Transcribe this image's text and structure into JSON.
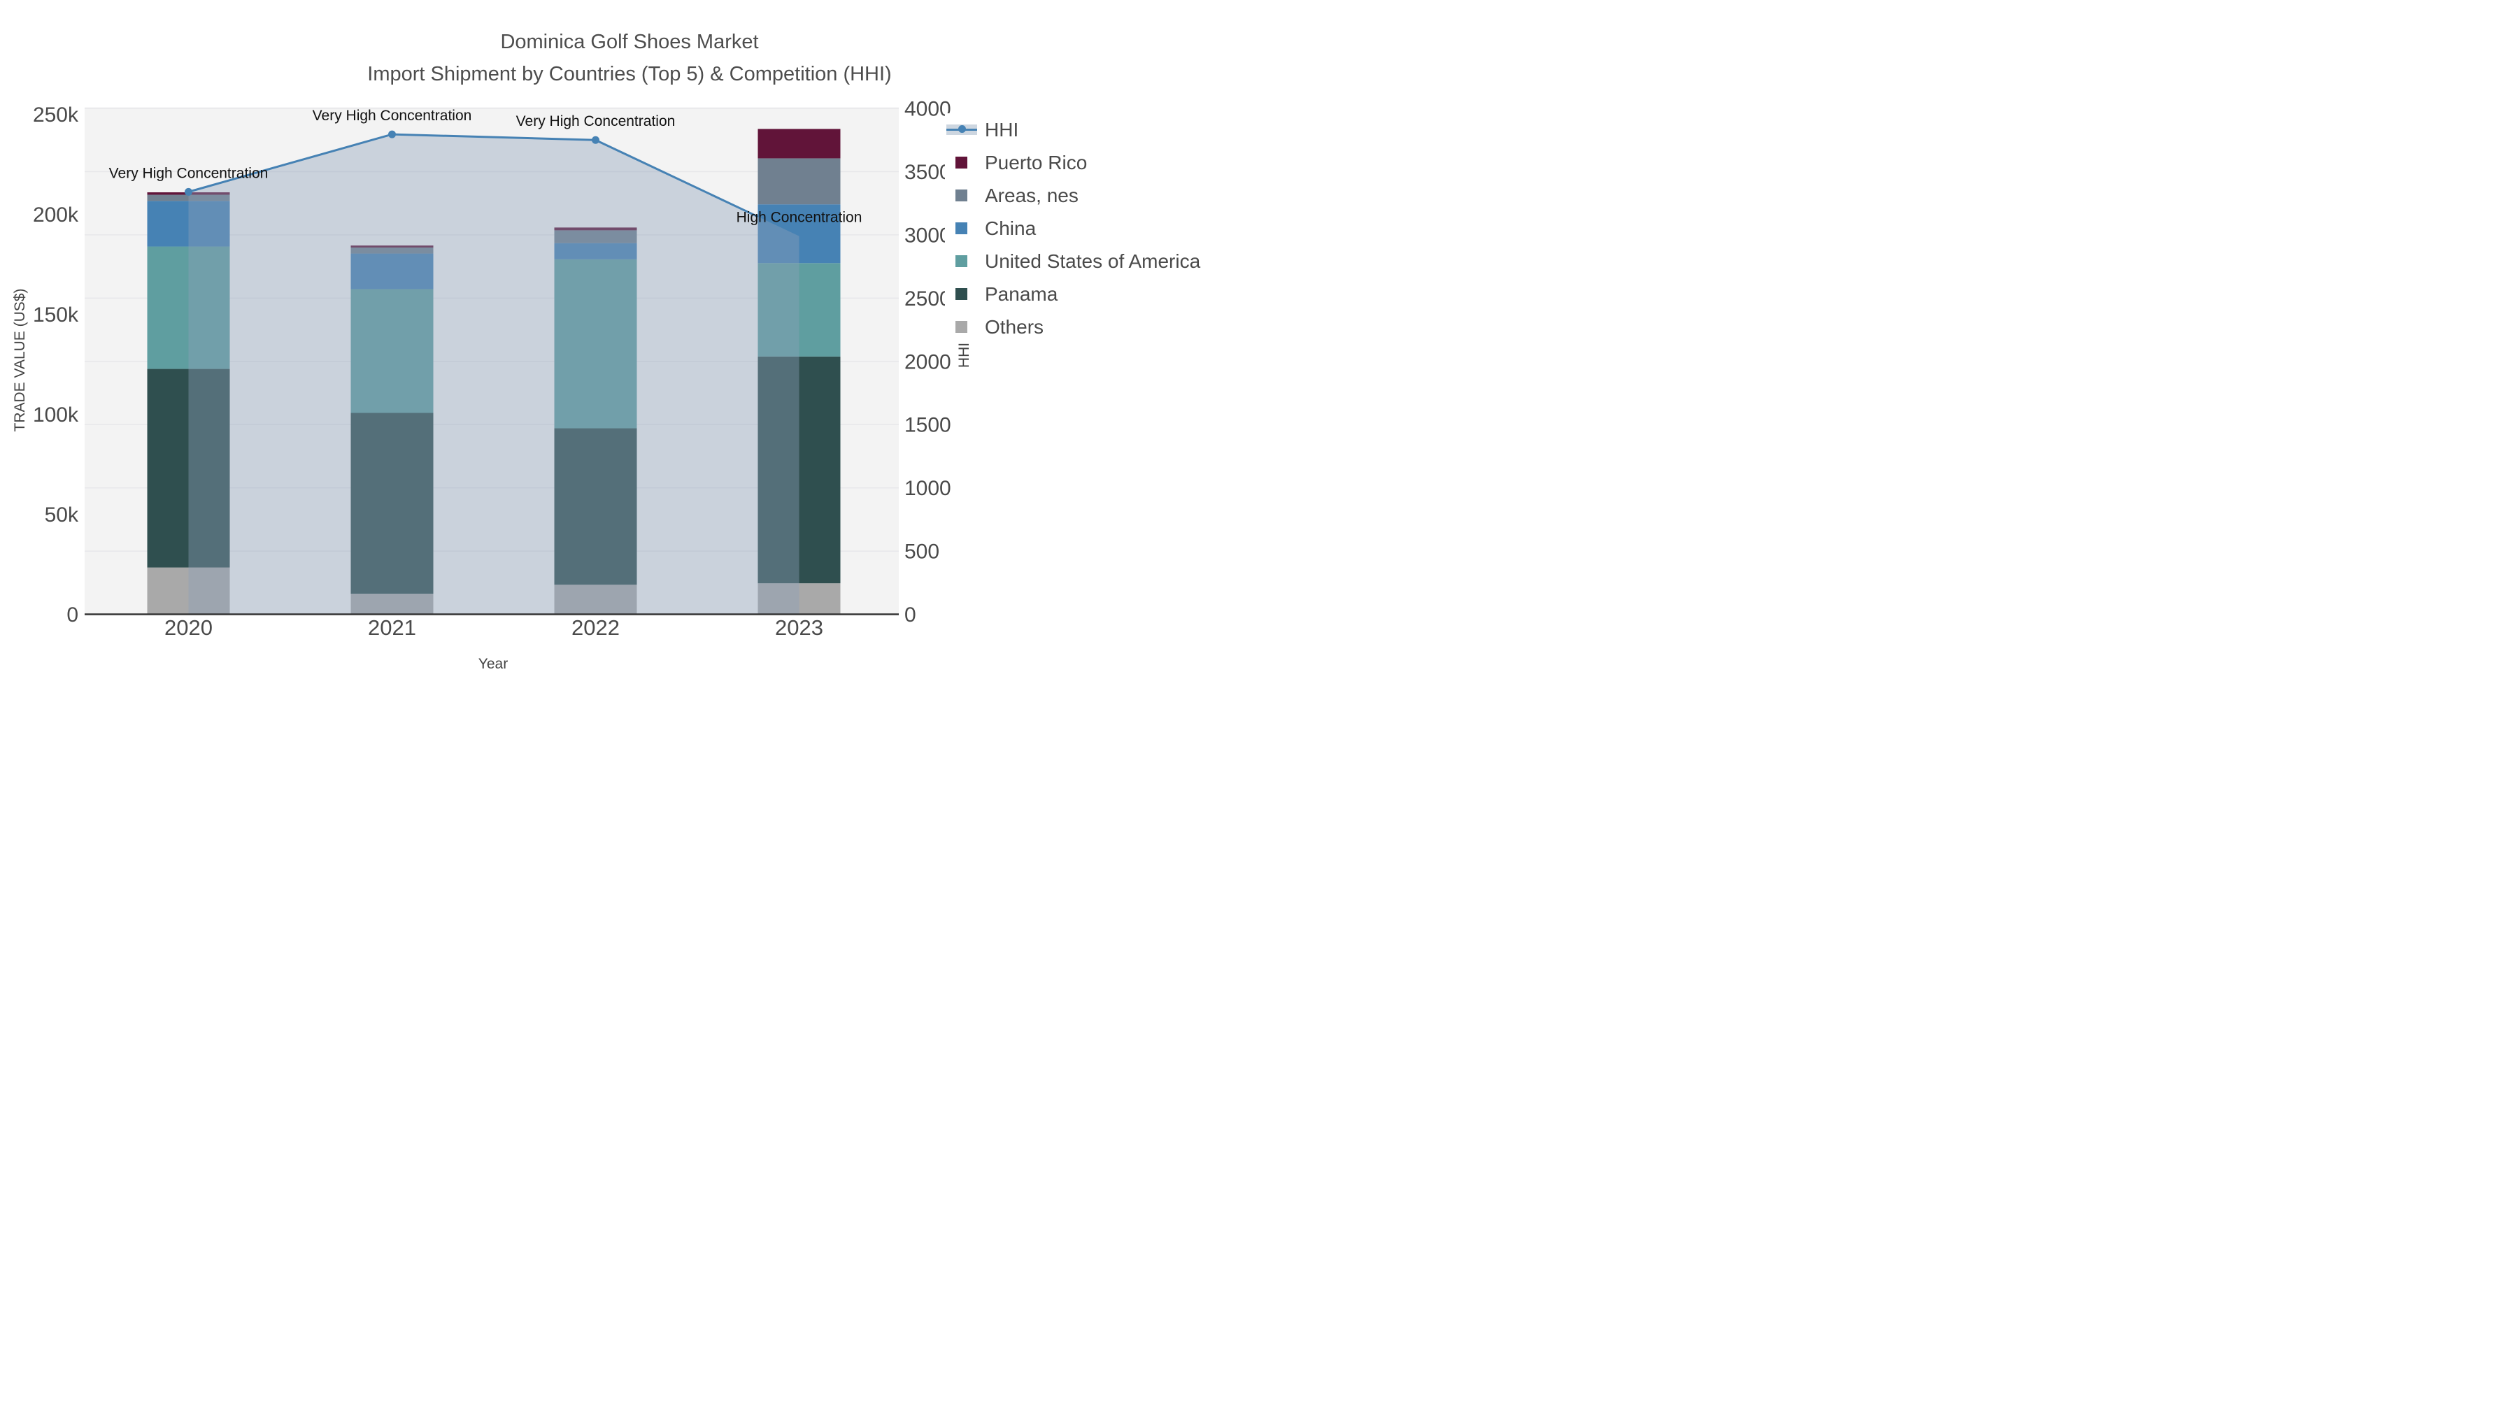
{
  "title": {
    "line1": "Dominica Golf Shoes Market",
    "line2": "Import Shipment by Countries (Top 5) & Competition (HHI)"
  },
  "axes": {
    "x": {
      "title": "Year",
      "tick_labels": [
        "2020",
        "2021",
        "2022",
        "2023"
      ]
    },
    "y_left": {
      "title": "TRADE VALUE (US$)",
      "tick_labels": [
        "0",
        "50k",
        "100k",
        "150k",
        "200k",
        "250k"
      ],
      "tick_values": [
        0,
        50000,
        100000,
        150000,
        200000,
        250000
      ]
    },
    "y_right": {
      "title": "HHI",
      "tick_labels": [
        "0",
        "500",
        "1000",
        "1500",
        "2000",
        "2500",
        "3000",
        "3500",
        "4000"
      ],
      "tick_values": [
        0,
        500,
        1000,
        1500,
        2000,
        2500,
        3000,
        3500,
        4000
      ]
    }
  },
  "legend": [
    {
      "label": "HHI",
      "type": "line",
      "color": "#4682b4"
    },
    {
      "label": "Puerto Rico",
      "type": "square",
      "color": "#611439"
    },
    {
      "label": "Areas, nes",
      "type": "square",
      "color": "#708090"
    },
    {
      "label": "China",
      "type": "square",
      "color": "#4682b4"
    },
    {
      "label": "United States of America",
      "type": "square",
      "color": "#5f9ea0"
    },
    {
      "label": "Panama",
      "type": "square",
      "color": "#2f4f4f"
    },
    {
      "label": "Others",
      "type": "square",
      "color": "#a9a9a9"
    }
  ],
  "annotations": [
    {
      "category": "2020",
      "text": "Very High Concentration"
    },
    {
      "category": "2021",
      "text": "Very High Concentration"
    },
    {
      "category": "2022",
      "text": "Very High Concentration"
    },
    {
      "category": "2023",
      "text": "High Concentration"
    }
  ],
  "chart_data": {
    "type": "bar",
    "subtype": "stacked-bars-with-line-overlay",
    "categories": [
      "2020",
      "2021",
      "2022",
      "2023"
    ],
    "series": [
      {
        "name": "Others",
        "color": "#a9a9a9",
        "axis": "left",
        "values": [
          23400,
          10300,
          14800,
          15500
        ]
      },
      {
        "name": "Panama",
        "color": "#2f4f4f",
        "axis": "left",
        "values": [
          99300,
          90400,
          78200,
          113400
        ]
      },
      {
        "name": "United States of America",
        "color": "#5f9ea0",
        "axis": "left",
        "values": [
          61200,
          61900,
          84500,
          46700
        ]
      },
      {
        "name": "China",
        "color": "#4682b4",
        "axis": "left",
        "values": [
          22800,
          17800,
          8100,
          29400
        ]
      },
      {
        "name": "Areas, nes",
        "color": "#708090",
        "axis": "left",
        "values": [
          3100,
          3000,
          6400,
          23000
        ]
      },
      {
        "name": "Puerto Rico",
        "color": "#611439",
        "axis": "left",
        "values": [
          1200,
          1000,
          1400,
          14700
        ]
      }
    ],
    "bar_totals": [
      211000,
      184400,
      193400,
      242700
    ],
    "line_series": {
      "name": "HHI",
      "axis": "right",
      "color": "#4682b4",
      "area_fill": "rgba(141,159,186,0.40)",
      "values": [
        3340,
        3795,
        3750,
        2990
      ]
    },
    "xlabel": "Year",
    "ylabel_left": "TRADE VALUE (US$)",
    "ylabel_right": "HHI",
    "ylim_left": [
      0,
      253000
    ],
    "ylim_right": [
      0,
      4000
    ],
    "grid": "horizontal, at right-axis ticks every 500",
    "legend_position": "outside right"
  }
}
